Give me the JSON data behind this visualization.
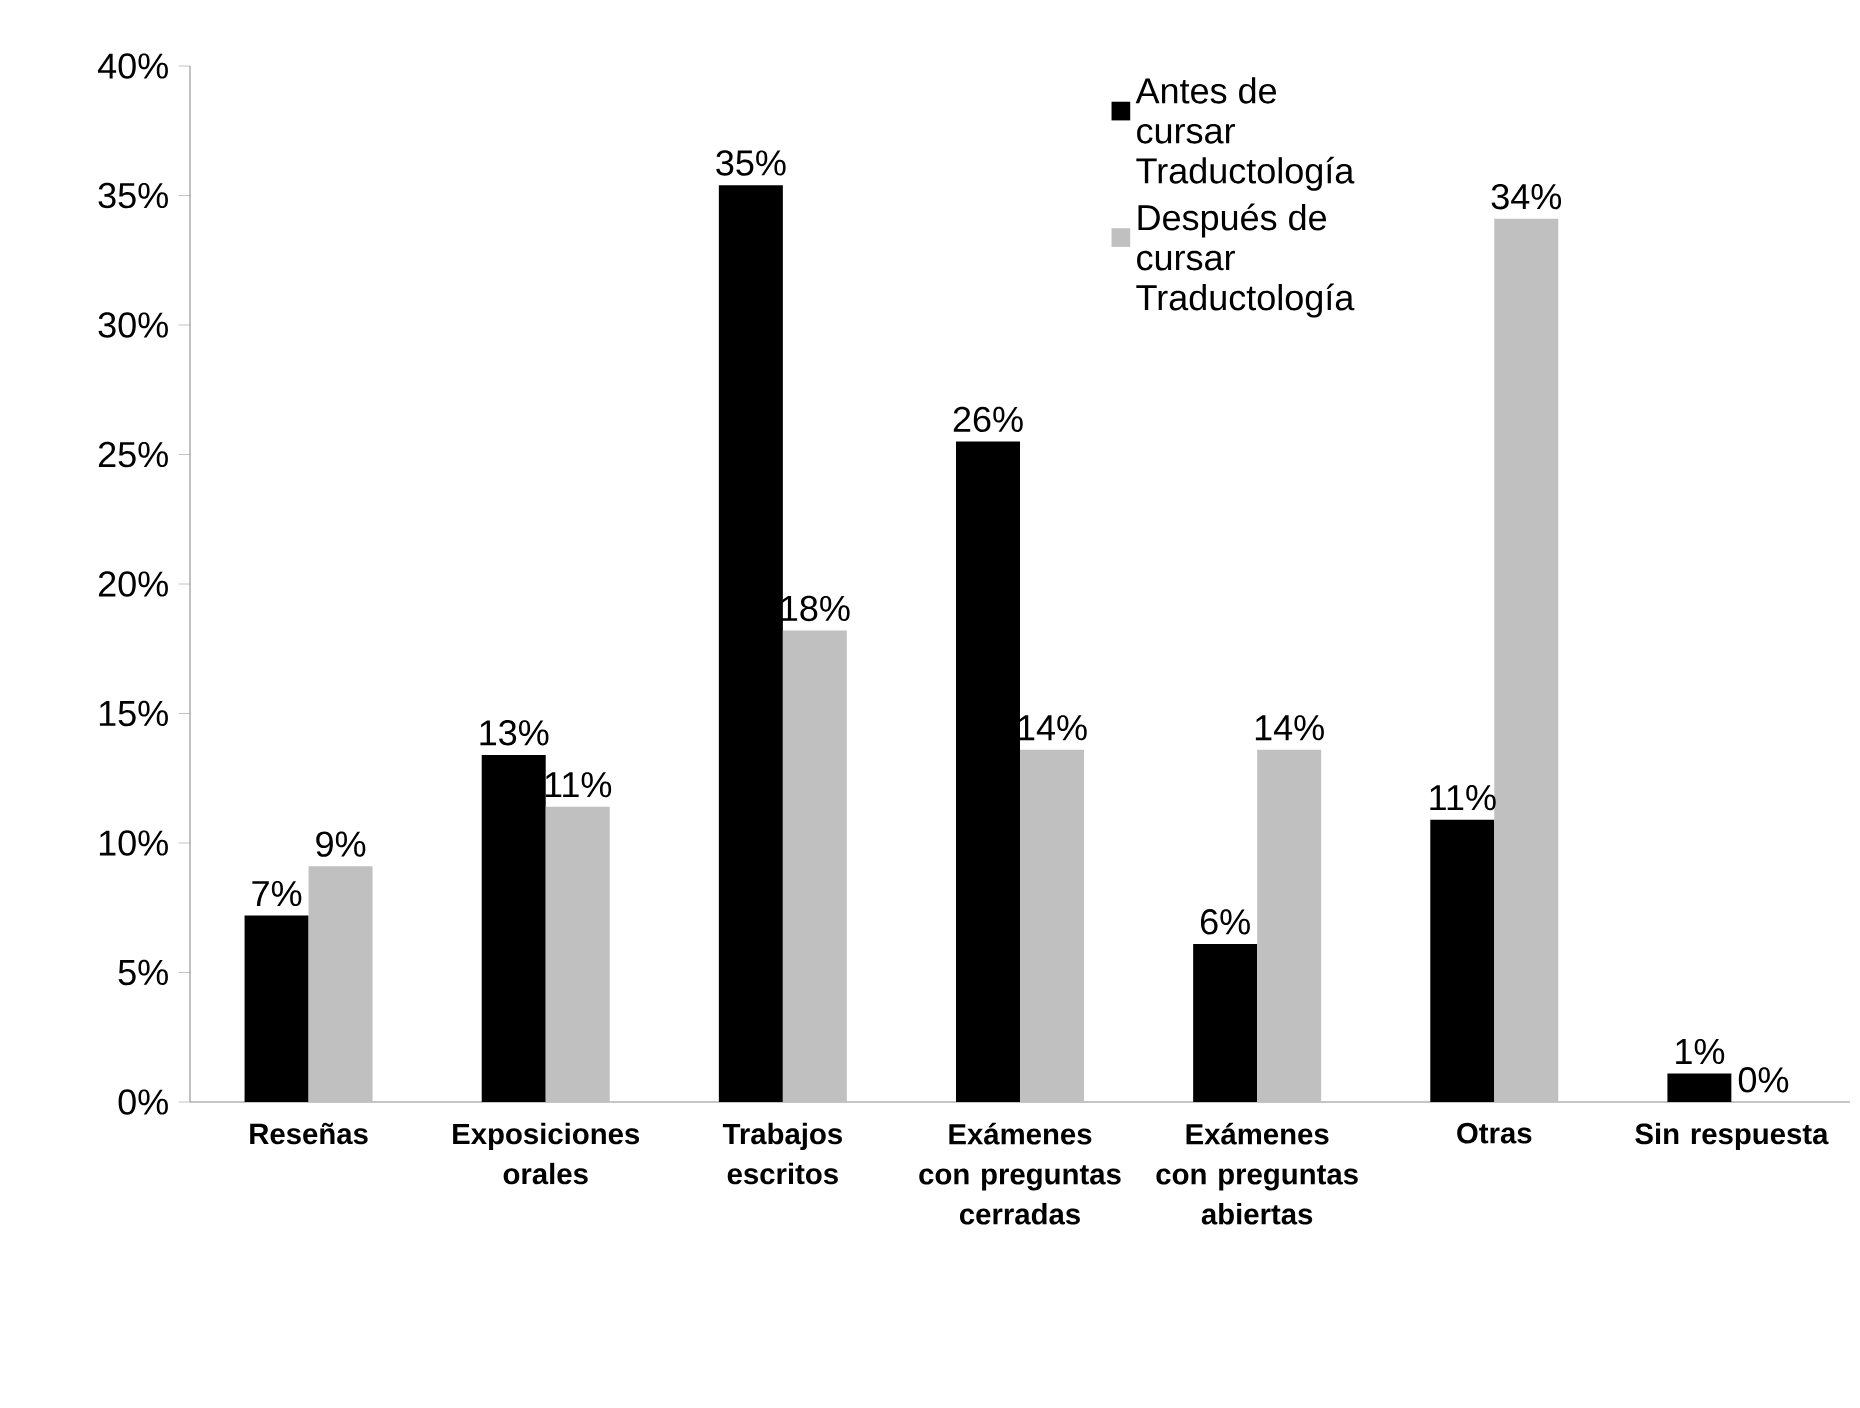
{
  "chart_data": {
    "type": "bar",
    "categories": [
      "Reseñas",
      "Exposiciones orales",
      "Trabajos escritos",
      "Exámenes con preguntas cerradas",
      "Exámenes con preguntas abiertas",
      "Otras",
      "Sin respuesta"
    ],
    "series": [
      {
        "name": "Antes de cursar Traductología",
        "color": "#000000",
        "values": [
          7.2,
          13.4,
          35.4,
          25.5,
          6.1,
          10.9,
          1.1
        ],
        "value_labels": [
          "7%",
          "13%",
          "35%",
          "26%",
          "6%",
          "11%",
          "1%"
        ]
      },
      {
        "name": "Después de cursar Traductología",
        "color": "#c0c0c0",
        "values": [
          9.1,
          11.4,
          18.2,
          13.6,
          13.6,
          34.1,
          0
        ],
        "value_labels": [
          "9%",
          "11%",
          "18%",
          "14%",
          "14%",
          "34%",
          "0%"
        ]
      }
    ],
    "ylim": [
      0,
      40
    ],
    "yticks": [
      {
        "value": 0,
        "label": "0%"
      },
      {
        "value": 5,
        "label": "5%"
      },
      {
        "value": 10,
        "label": "10%"
      },
      {
        "value": 15,
        "label": "15%"
      },
      {
        "value": 20,
        "label": "20%"
      },
      {
        "value": 25,
        "label": "25%"
      },
      {
        "value": 30,
        "label": "30%"
      },
      {
        "value": 35,
        "label": "35%"
      },
      {
        "value": 40,
        "label": "40%"
      }
    ],
    "grid": false,
    "legend": "top"
  }
}
